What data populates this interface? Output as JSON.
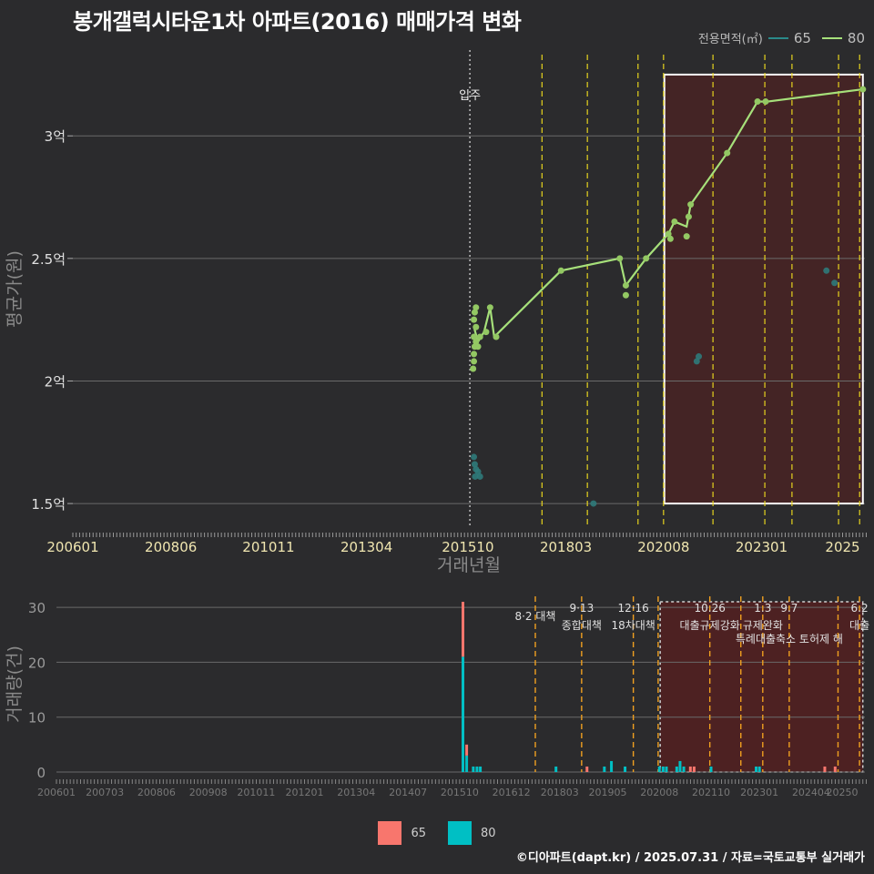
{
  "title": "봉개갤럭시타운1차 아파트(2016) 매매가격 변화",
  "credit": "©디아파트(dapt.kr) / 2025.07.31 / 자료=국토교통부 실거래가",
  "legend_top": {
    "title": "전용면적(㎡)",
    "items": [
      {
        "label": "65",
        "color": "#2a8a8a"
      },
      {
        "label": "80",
        "color": "#a6e07a"
      }
    ]
  },
  "legend_bottom": {
    "items": [
      {
        "label": "65",
        "color": "#f8766d"
      },
      {
        "label": "80",
        "color": "#00bfc4"
      }
    ]
  },
  "chart_data": [
    {
      "type": "line",
      "title": "봉개갤럭시타운1차 아파트(2016) 매매가격 변화",
      "xlabel": "거래년월",
      "ylabel": "평균가(원)",
      "xlim": [
        2006.0,
        2025.55
      ],
      "ylim": [
        1.4,
        3.35
      ],
      "x_ticks": [
        2006.0,
        2008.42,
        2010.83,
        2013.25,
        2015.75,
        2018.17,
        2020.58,
        2023.0,
        2025.0
      ],
      "x_tick_labels": [
        "200601",
        "200806",
        "201011",
        "201304",
        "201510",
        "201803",
        "202008",
        "202301",
        "2025"
      ],
      "y_ticks": [
        1.5,
        2.0,
        2.5,
        3.0
      ],
      "y_tick_labels": [
        "1.5억",
        "2억",
        "2.5억",
        "3억"
      ],
      "move_in_label": "입주",
      "move_in_x": 2015.8,
      "highlight_range": [
        2020.6,
        2025.5
      ],
      "policy_lines_x": [
        2017.58,
        2018.7,
        2019.95,
        2020.58,
        2021.8,
        2023.08,
        2023.75,
        2024.9,
        2025.42
      ],
      "series": [
        {
          "name": "65",
          "points": [
            [
              2015.9,
              1.69
            ],
            [
              2015.92,
              1.66
            ],
            [
              2015.95,
              1.64
            ],
            [
              2016.0,
              1.63
            ],
            [
              2016.05,
              1.61
            ],
            [
              2015.93,
              1.61
            ],
            [
              2018.85,
              1.5
            ],
            [
              2021.4,
              2.08
            ],
            [
              2021.45,
              2.1
            ],
            [
              2024.6,
              2.45
            ],
            [
              2024.8,
              2.4
            ]
          ]
        },
        {
          "name": "80",
          "line": [
            [
              2015.9,
              2.22
            ],
            [
              2016.0,
              2.16
            ],
            [
              2016.15,
              2.2
            ],
            [
              2016.3,
              2.3
            ],
            [
              2016.4,
              2.18
            ],
            [
              2018.05,
              2.45
            ],
            [
              2019.5,
              2.5
            ],
            [
              2019.65,
              2.39
            ],
            [
              2020.15,
              2.5
            ],
            [
              2020.7,
              2.6
            ],
            [
              2020.85,
              2.65
            ],
            [
              2021.15,
              2.63
            ],
            [
              2021.25,
              2.72
            ],
            [
              2022.15,
              2.93
            ],
            [
              2022.9,
              3.14
            ],
            [
              2023.15,
              3.14
            ],
            [
              2025.5,
              3.19
            ]
          ],
          "points": [
            [
              2015.88,
              2.05
            ],
            [
              2015.9,
              2.08
            ],
            [
              2015.9,
              2.11
            ],
            [
              2015.92,
              2.14
            ],
            [
              2015.95,
              2.16
            ],
            [
              2015.9,
              2.18
            ],
            [
              2015.95,
              2.22
            ],
            [
              2015.9,
              2.25
            ],
            [
              2015.92,
              2.28
            ],
            [
              2015.95,
              2.3
            ],
            [
              2016.0,
              2.14
            ],
            [
              2016.05,
              2.18
            ],
            [
              2016.2,
              2.2
            ],
            [
              2016.3,
              2.3
            ],
            [
              2016.45,
              2.18
            ],
            [
              2018.05,
              2.45
            ],
            [
              2019.5,
              2.5
            ],
            [
              2019.65,
              2.35
            ],
            [
              2019.65,
              2.39
            ],
            [
              2020.15,
              2.5
            ],
            [
              2020.7,
              2.6
            ],
            [
              2020.75,
              2.58
            ],
            [
              2020.85,
              2.65
            ],
            [
              2021.15,
              2.59
            ],
            [
              2021.2,
              2.67
            ],
            [
              2021.25,
              2.72
            ],
            [
              2022.15,
              2.93
            ],
            [
              2022.9,
              3.14
            ],
            [
              2023.1,
              3.14
            ],
            [
              2025.5,
              3.19
            ]
          ]
        }
      ]
    },
    {
      "type": "bar",
      "xlabel": "",
      "ylabel": "거래량(건)",
      "xlim": [
        2006.0,
        2025.55
      ],
      "ylim": [
        0,
        32
      ],
      "x_ticks": [
        2006.0,
        2007.17,
        2008.42,
        2009.67,
        2010.83,
        2012.0,
        2013.25,
        2014.5,
        2015.75,
        2017.0,
        2018.17,
        2019.33,
        2020.58,
        2021.83,
        2023.0,
        2024.25,
        2025.0
      ],
      "x_tick_labels": [
        "200601",
        "200703",
        "200806",
        "200908",
        "201011",
        "201201",
        "201304",
        "201407",
        "201510",
        "201612",
        "201803",
        "201905",
        "202008",
        "202110",
        "202301",
        "202404",
        "20250"
      ],
      "y_ticks": [
        0,
        10,
        20,
        30
      ],
      "y_tick_labels": [
        "0",
        "10",
        "20",
        "30"
      ],
      "highlight_range": [
        2020.6,
        2025.5
      ],
      "series": [
        {
          "name": "80",
          "bars": [
            [
              2015.83,
              21
            ],
            [
              2015.92,
              3
            ],
            [
              2016.08,
              1
            ],
            [
              2016.17,
              1
            ],
            [
              2016.25,
              1
            ],
            [
              2018.08,
              1
            ],
            [
              2019.25,
              1
            ],
            [
              2019.42,
              2
            ],
            [
              2019.75,
              1
            ],
            [
              2020.58,
              1
            ],
            [
              2020.67,
              1
            ],
            [
              2020.75,
              1
            ],
            [
              2021.0,
              1
            ],
            [
              2021.08,
              2
            ],
            [
              2021.17,
              1
            ],
            [
              2021.83,
              1
            ],
            [
              2022.92,
              1
            ],
            [
              2023.0,
              1
            ]
          ]
        },
        {
          "name": "65",
          "bars": [
            [
              2015.83,
              10
            ],
            [
              2015.92,
              2
            ],
            [
              2018.83,
              1
            ],
            [
              2021.33,
              1
            ],
            [
              2021.42,
              1
            ],
            [
              2024.58,
              1
            ],
            [
              2024.83,
              1
            ]
          ]
        }
      ],
      "policies": [
        {
          "x": 2017.58,
          "date": "",
          "label": "8·2 대책"
        },
        {
          "x": 2018.7,
          "date": "9·13",
          "label": "종합대책"
        },
        {
          "x": 2019.95,
          "date": "12·16",
          "label": "18차대책"
        },
        {
          "x": 2020.55,
          "date": "",
          "label": ""
        },
        {
          "x": 2021.8,
          "date": "10.26",
          "label": "대출규제강화"
        },
        {
          "x": 2022.55,
          "date": "",
          "label": ""
        },
        {
          "x": 2023.08,
          "date": "1.3",
          "label": "규제완화"
        },
        {
          "x": 2023.72,
          "date": "9.7",
          "label": "특례대출축소 토허제 해"
        },
        {
          "x": 2024.9,
          "date": "",
          "label": ""
        },
        {
          "x": 2025.42,
          "date": "6.2",
          "label": "대출"
        }
      ]
    }
  ]
}
